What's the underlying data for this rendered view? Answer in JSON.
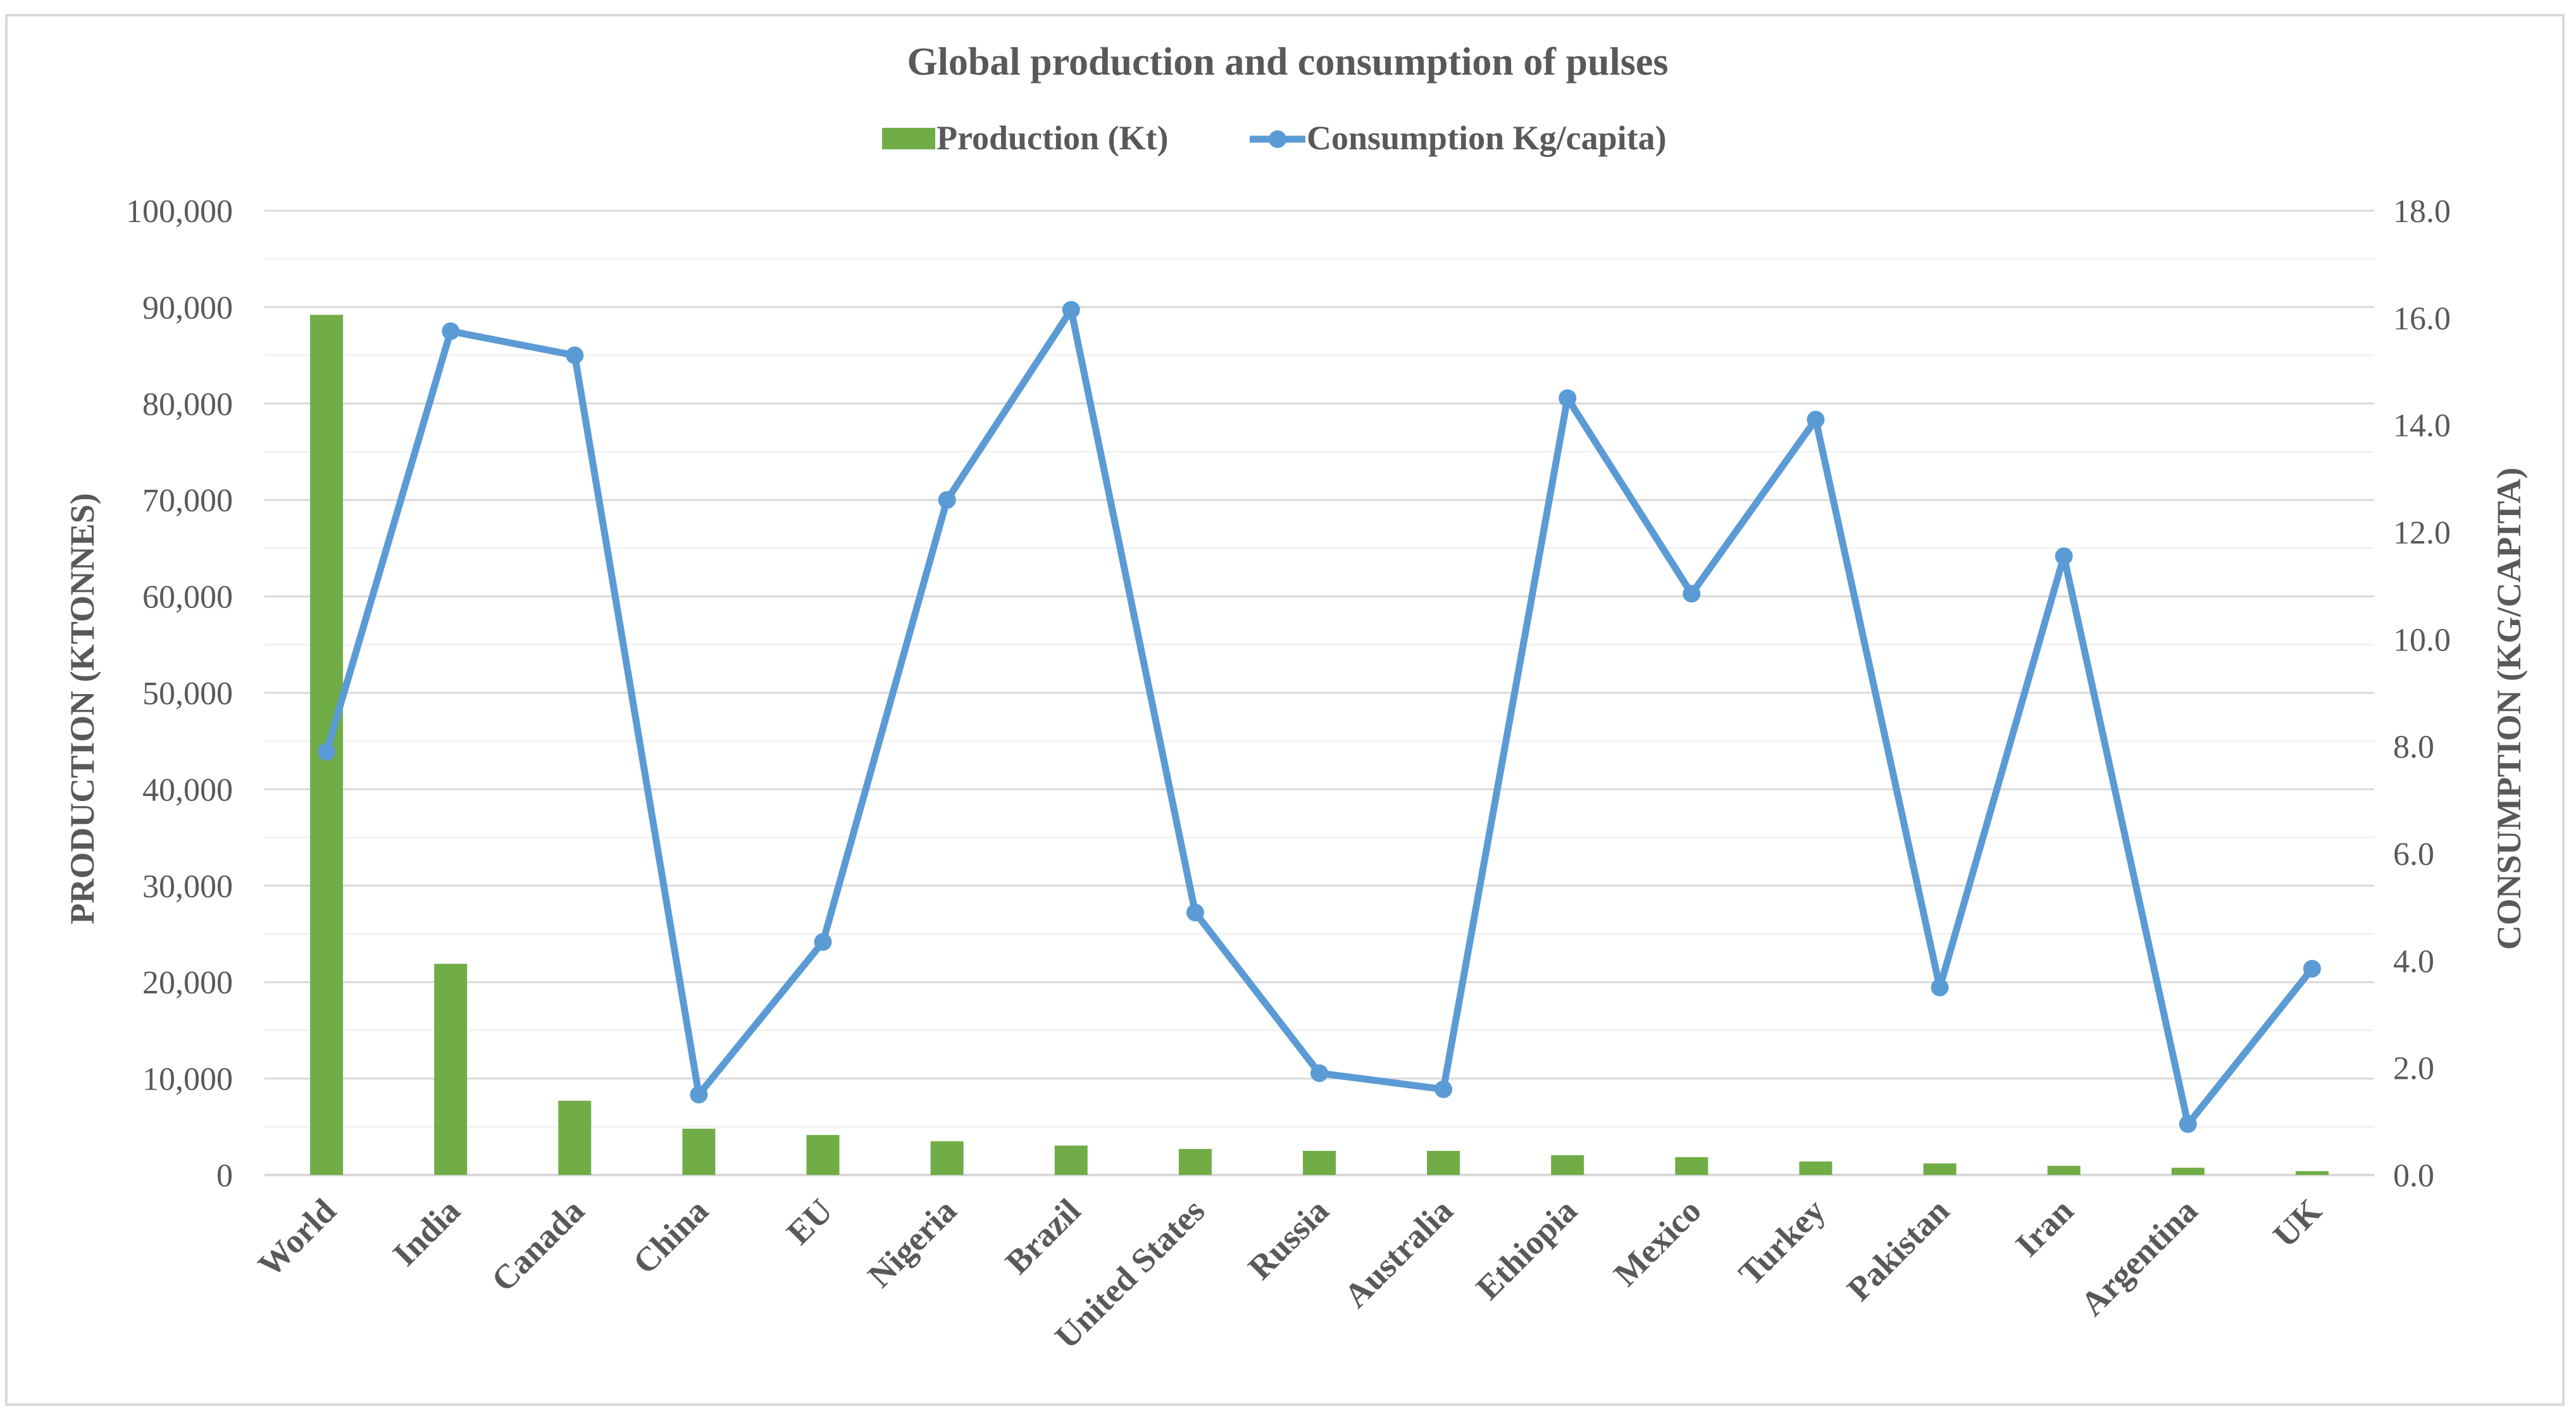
{
  "chart_data": {
    "type": "bar",
    "title": "Global production and consumption of pulses",
    "categories": [
      "World",
      "India",
      "Canada",
      "China",
      "EU",
      "Nigeria",
      "Brazil",
      "United States",
      "Russia",
      "Australia",
      "Ethiopia",
      "Mexico",
      "Turkey",
      "Pakistan",
      "Iran",
      "Argentina",
      "UK"
    ],
    "series": [
      {
        "name": "Production (Kt)",
        "type": "bar",
        "axis": "left",
        "color": "#70ad47",
        "values": [
          89200,
          21900,
          7700,
          4800,
          4150,
          3500,
          3050,
          2700,
          2500,
          2500,
          2050,
          1850,
          1400,
          1200,
          950,
          750,
          400
        ]
      },
      {
        "name": "Consumption Kg/capita)",
        "type": "line",
        "axis": "right",
        "color": "#5b9bd5",
        "values": [
          7.9,
          15.75,
          15.3,
          1.5,
          4.35,
          12.6,
          16.15,
          4.9,
          1.9,
          1.6,
          14.5,
          10.85,
          14.1,
          3.5,
          11.55,
          0.95,
          3.85
        ]
      }
    ],
    "ylabel": "PRODUCTION (KTONNES)",
    "y2label": "CONSUMPTION (KG/CAPITA)",
    "ylim": [
      0,
      100000
    ],
    "y2lim": [
      0,
      18
    ],
    "yticks": [
      "0",
      "10,000",
      "20,000",
      "30,000",
      "40,000",
      "50,000",
      "60,000",
      "70,000",
      "80,000",
      "90,000",
      "100,000"
    ],
    "y2ticks": [
      "0.0",
      "2.0",
      "4.0",
      "6.0",
      "8.0",
      "10.0",
      "12.0",
      "14.0",
      "16.0",
      "18.0"
    ],
    "legend_position": "top-center",
    "grid": true
  }
}
